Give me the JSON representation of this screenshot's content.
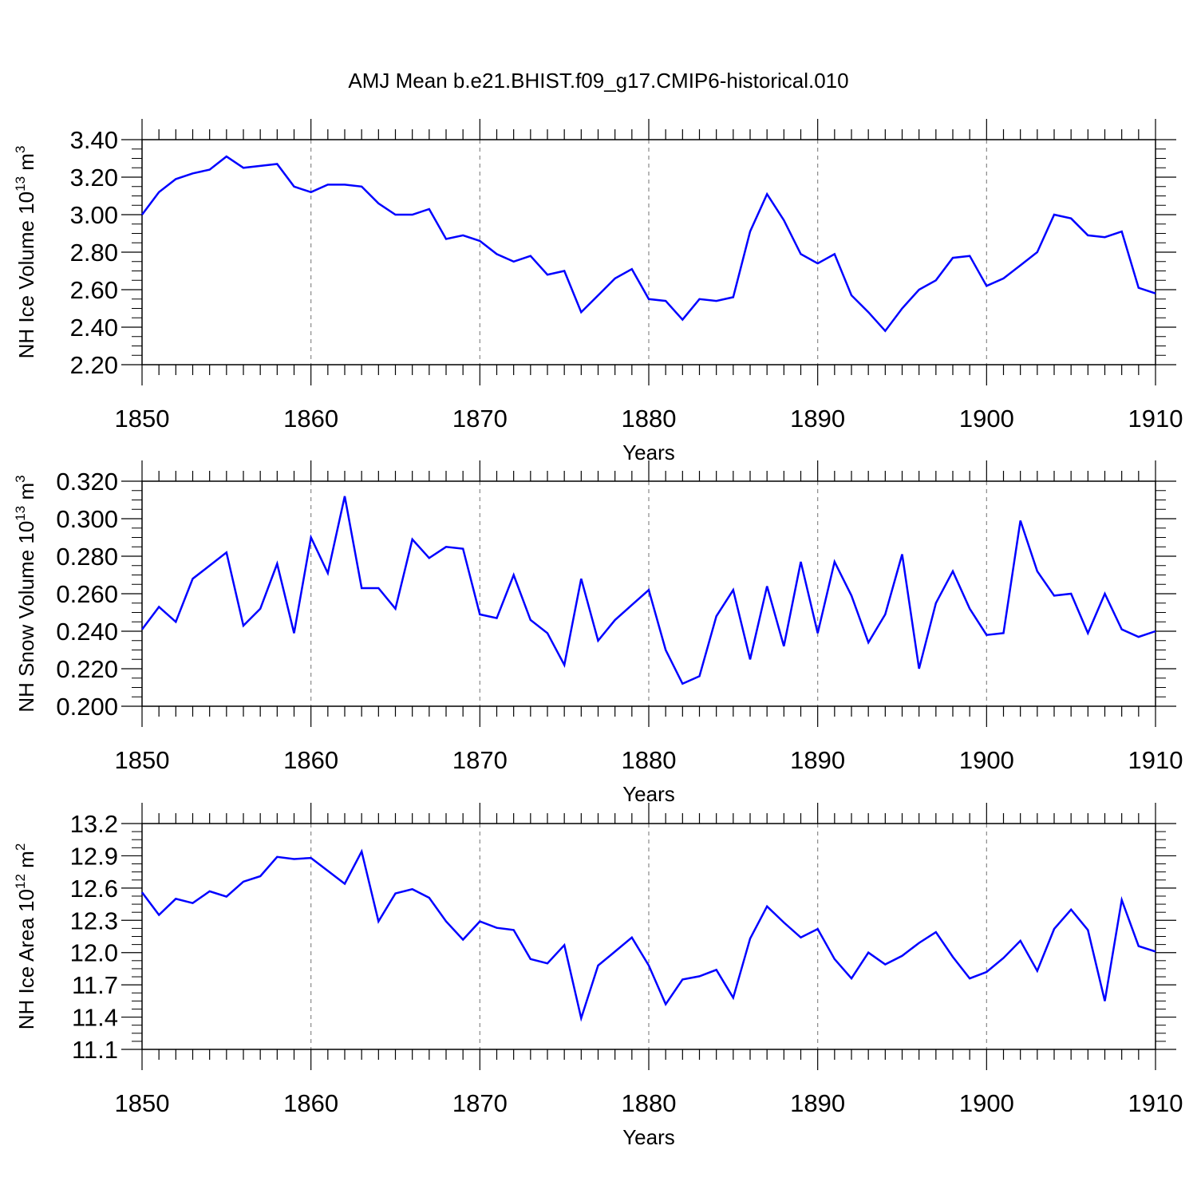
{
  "title": "AMJ Mean b.e21.BHIST.f09_g17.CMIP6-historical.010",
  "line_color": "#0000ff",
  "grid_color": "#888888",
  "chart_data": [
    {
      "type": "line",
      "ylabel": "NH Ice Volume 10",
      "ylabel_exp": "13",
      "ylabel_unit": " m",
      "ylabel_unit_exp": "3",
      "xlabel": "Years",
      "xlim": [
        1850,
        1910
      ],
      "ylim": [
        2.2,
        3.4
      ],
      "yticks": [
        "2.20",
        "2.40",
        "2.60",
        "2.80",
        "3.00",
        "3.20",
        "3.40"
      ],
      "xticks": [
        "1850",
        "1860",
        "1870",
        "1880",
        "1890",
        "1900",
        "1910"
      ],
      "grid": "vertical dashed at major x ticks",
      "x": [
        1850,
        1851,
        1852,
        1853,
        1854,
        1855,
        1856,
        1857,
        1858,
        1859,
        1860,
        1861,
        1862,
        1863,
        1864,
        1865,
        1866,
        1867,
        1868,
        1869,
        1870,
        1871,
        1872,
        1873,
        1874,
        1875,
        1876,
        1877,
        1878,
        1879,
        1880,
        1881,
        1882,
        1883,
        1884,
        1885,
        1886,
        1887,
        1888,
        1889,
        1890,
        1891,
        1892,
        1893,
        1894,
        1895,
        1896,
        1897,
        1898,
        1899,
        1900,
        1901,
        1902,
        1903,
        1904,
        1905,
        1906,
        1907,
        1908,
        1909,
        1910
      ],
      "values": [
        3.0,
        3.12,
        3.19,
        3.22,
        3.24,
        3.31,
        3.25,
        3.26,
        3.27,
        3.15,
        3.12,
        3.16,
        3.16,
        3.15,
        3.06,
        3.0,
        3.0,
        3.03,
        2.87,
        2.89,
        2.86,
        2.79,
        2.75,
        2.78,
        2.68,
        2.7,
        2.48,
        2.57,
        2.66,
        2.71,
        2.55,
        2.54,
        2.44,
        2.55,
        2.54,
        2.56,
        2.91,
        3.11,
        2.97,
        2.79,
        2.74,
        2.79,
        2.57,
        2.48,
        2.38,
        2.5,
        2.6,
        2.65,
        2.77,
        2.78,
        2.62,
        2.66,
        2.73,
        2.8,
        3.0,
        2.98,
        2.89,
        2.88,
        2.91,
        2.61,
        2.58
      ]
    },
    {
      "type": "line",
      "ylabel": "NH Snow Volume 10",
      "ylabel_exp": "13",
      "ylabel_unit": " m",
      "ylabel_unit_exp": "3",
      "xlabel": "Years",
      "xlim": [
        1850,
        1910
      ],
      "ylim": [
        0.2,
        0.32
      ],
      "yticks": [
        "0.200",
        "0.220",
        "0.240",
        "0.260",
        "0.280",
        "0.300",
        "0.320"
      ],
      "xticks": [
        "1850",
        "1860",
        "1870",
        "1880",
        "1890",
        "1900",
        "1910"
      ],
      "grid": "vertical dashed at major x ticks",
      "x": [
        1850,
        1851,
        1852,
        1853,
        1854,
        1855,
        1856,
        1857,
        1858,
        1859,
        1860,
        1861,
        1862,
        1863,
        1864,
        1865,
        1866,
        1867,
        1868,
        1869,
        1870,
        1871,
        1872,
        1873,
        1874,
        1875,
        1876,
        1877,
        1878,
        1879,
        1880,
        1881,
        1882,
        1883,
        1884,
        1885,
        1886,
        1887,
        1888,
        1889,
        1890,
        1891,
        1892,
        1893,
        1894,
        1895,
        1896,
        1897,
        1898,
        1899,
        1900,
        1901,
        1902,
        1903,
        1904,
        1905,
        1906,
        1907,
        1908,
        1909,
        1910
      ],
      "values": [
        0.241,
        0.253,
        0.245,
        0.268,
        0.275,
        0.282,
        0.243,
        0.252,
        0.276,
        0.239,
        0.29,
        0.271,
        0.312,
        0.263,
        0.263,
        0.252,
        0.289,
        0.279,
        0.285,
        0.284,
        0.249,
        0.247,
        0.27,
        0.246,
        0.239,
        0.222,
        0.268,
        0.235,
        0.246,
        0.254,
        0.262,
        0.23,
        0.212,
        0.216,
        0.248,
        0.262,
        0.225,
        0.264,
        0.232,
        0.277,
        0.239,
        0.277,
        0.259,
        0.234,
        0.249,
        0.281,
        0.22,
        0.255,
        0.272,
        0.252,
        0.238,
        0.239,
        0.299,
        0.272,
        0.259,
        0.26,
        0.239,
        0.26,
        0.241,
        0.237,
        0.24
      ]
    },
    {
      "type": "line",
      "ylabel": "NH Ice Area 10",
      "ylabel_exp": "12",
      "ylabel_unit": " m",
      "ylabel_unit_exp": "2",
      "xlabel": "Years",
      "xlim": [
        1850,
        1910
      ],
      "ylim": [
        11.1,
        13.2
      ],
      "yticks": [
        "11.1",
        "11.4",
        "11.7",
        "12.0",
        "12.3",
        "12.6",
        "12.9",
        "13.2"
      ],
      "xticks": [
        "1850",
        "1860",
        "1870",
        "1880",
        "1890",
        "1900",
        "1910"
      ],
      "grid": "vertical dashed at major x ticks",
      "x": [
        1850,
        1851,
        1852,
        1853,
        1854,
        1855,
        1856,
        1857,
        1858,
        1859,
        1860,
        1861,
        1862,
        1863,
        1864,
        1865,
        1866,
        1867,
        1868,
        1869,
        1870,
        1871,
        1872,
        1873,
        1874,
        1875,
        1876,
        1877,
        1878,
        1879,
        1880,
        1881,
        1882,
        1883,
        1884,
        1885,
        1886,
        1887,
        1888,
        1889,
        1890,
        1891,
        1892,
        1893,
        1894,
        1895,
        1896,
        1897,
        1898,
        1899,
        1900,
        1901,
        1902,
        1903,
        1904,
        1905,
        1906,
        1907,
        1908,
        1909,
        1910
      ],
      "values": [
        12.56,
        12.35,
        12.5,
        12.46,
        12.57,
        12.52,
        12.66,
        12.71,
        12.89,
        12.87,
        12.88,
        12.76,
        12.64,
        12.94,
        12.29,
        12.55,
        12.59,
        12.51,
        12.29,
        12.12,
        12.29,
        12.23,
        12.21,
        11.94,
        11.9,
        12.07,
        11.39,
        11.88,
        12.01,
        12.14,
        11.88,
        11.52,
        11.75,
        11.78,
        11.84,
        11.58,
        12.13,
        12.43,
        12.28,
        12.14,
        12.22,
        11.94,
        11.76,
        12.0,
        11.89,
        11.97,
        12.09,
        12.19,
        11.96,
        11.76,
        11.82,
        11.95,
        12.11,
        11.83,
        12.22,
        12.4,
        12.21,
        11.55,
        12.49,
        12.06,
        12.01
      ]
    }
  ]
}
